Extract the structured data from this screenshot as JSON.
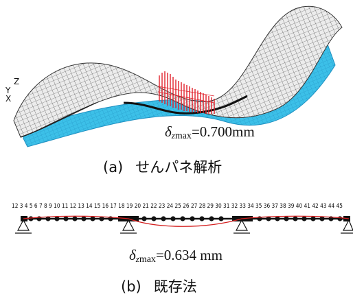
{
  "axis_triad": {
    "z": "Z",
    "yx": "Y X"
  },
  "panel_a": {
    "result_symbol": "δ",
    "result_sub": "z",
    "result_max": "max",
    "result_value": "=0.700mm",
    "caption_label": "(a)",
    "caption_text": "せんパネ解析"
  },
  "panel_b": {
    "node_numbers": "12 3  4  5  6  7  8  9 10 11 12 13 14 15 16 17 18 19 20 21 22 23 24 25 26 27 28 29 30 31 32 33 34 35 36 37 38 39 40 41 42 43 44 45",
    "result_symbol": "δ",
    "result_sub": "z",
    "result_max": "max",
    "result_value": "=0.634 mm",
    "caption_label": "(b)",
    "caption_text": "既存法"
  },
  "colors": {
    "mesh_top": "#e6e6e6",
    "mesh_line": "#3a3a3a",
    "underside": "#34b6e0",
    "load_arrows": "#e0202a",
    "beam": "#111111",
    "deflection": "#d42020"
  },
  "icons": [
    "support-triangle-icon",
    "load-arrow-icon"
  ]
}
